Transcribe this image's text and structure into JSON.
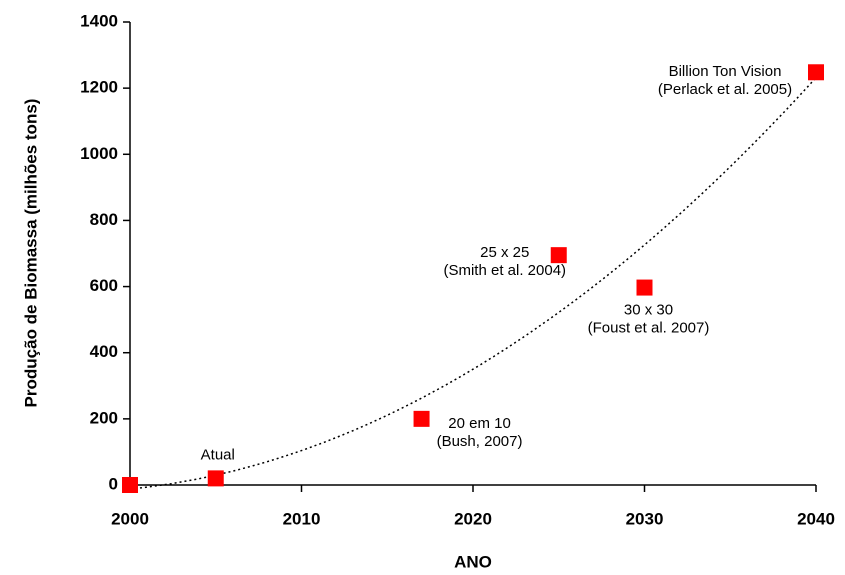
{
  "chart_data": {
    "type": "scatter",
    "x_label": "ANO",
    "y_label": "Produção de Biomassa (milhões tons)",
    "x": [
      2000,
      2005,
      2017,
      2025,
      2030,
      2040
    ],
    "values": [
      0,
      20,
      200,
      695,
      597,
      1248
    ],
    "point_labels": [
      null,
      [
        "Atual"
      ],
      [
        "20 em 10",
        "(Bush, 2007)"
      ],
      [
        "25 x 25",
        "(Smith et al. 2004)"
      ],
      [
        "30 x 30",
        "(Foust et al. 2007)"
      ],
      [
        "Billion Ton Vision",
        "(Perlack et al. 2005)"
      ]
    ],
    "color": "#ff0000",
    "trendline": "polynomial",
    "xlim": [
      2000,
      2040
    ],
    "xticks": [
      2000,
      2010,
      2020,
      2030,
      2040
    ],
    "ylim": [
      0,
      1400
    ],
    "yticks": [
      0,
      200,
      400,
      600,
      800,
      1000,
      1200,
      1400
    ]
  }
}
